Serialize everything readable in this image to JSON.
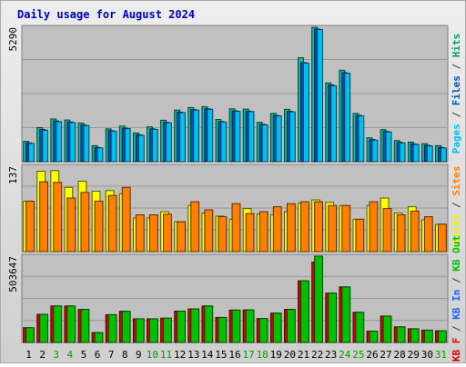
{
  "chart_data": {
    "type": "bar",
    "title": "Daily usage for August 2024",
    "categories": [
      "1",
      "2",
      "3",
      "4",
      "5",
      "6",
      "7",
      "8",
      "9",
      "10",
      "11",
      "12",
      "13",
      "14",
      "15",
      "16",
      "17",
      "18",
      "19",
      "20",
      "21",
      "22",
      "23",
      "24",
      "25",
      "26",
      "27",
      "28",
      "29",
      "30",
      "31"
    ],
    "weekend_days": [
      "3",
      "4",
      "10",
      "11",
      "17",
      "18",
      "24",
      "25",
      "31"
    ],
    "panels": [
      {
        "max_label": "5290",
        "ylim": [
          0,
          5290
        ],
        "axis_label": [
          {
            "text": "Pages",
            "color": "#00c0f0"
          },
          {
            "text": " / ",
            "color": "#404040"
          },
          {
            "text": "Files",
            "color": "#0050c0"
          },
          {
            "text": " / ",
            "color": "#404040"
          },
          {
            "text": "Hits",
            "color": "#00a070"
          }
        ],
        "series": [
          {
            "name": "Hits",
            "color": "#00c0a0",
            "values": [
              800,
              1340,
              1680,
              1640,
              1520,
              630,
              1290,
              1400,
              1130,
              1370,
              1630,
              2030,
              2130,
              2160,
              1660,
              2080,
              2070,
              1550,
              1900,
              2060,
              4090,
              5290,
              3100,
              3600,
              1900,
              940,
              1260,
              830,
              770,
              710,
              630
            ]
          },
          {
            "name": "Files",
            "color": "#0050c0",
            "values": [
              740,
              1270,
              1600,
              1560,
              1440,
              560,
              1220,
              1320,
              1060,
              1290,
              1550,
              1950,
              2050,
              2080,
              1580,
              2000,
              1990,
              1470,
              1820,
              1980,
              3900,
              5220,
              3020,
              3500,
              1820,
              870,
              1190,
              760,
              700,
              640,
              560
            ]
          },
          {
            "name": "Pages",
            "color": "#00c0f0",
            "values": [
              720,
              1240,
              1570,
              1540,
              1420,
              540,
              1200,
              1300,
              1040,
              1270,
              1530,
              1930,
              2030,
              2060,
              1560,
              1980,
              1970,
              1450,
              1800,
              1960,
              3880,
              5200,
              2990,
              3480,
              1800,
              850,
              1170,
              740,
              680,
              620,
              540
            ]
          }
        ]
      },
      {
        "max_label": "137",
        "ylim": [
          0,
          137
        ],
        "axis_label": [
          {
            "text": "Visits",
            "color": "#f0f000"
          },
          {
            "text": " / ",
            "color": "#404040"
          },
          {
            "text": "Sites",
            "color": "#ff8000"
          }
        ],
        "series": [
          {
            "name": "Visits",
            "color": "#ffff00",
            "values": [
              81,
              129,
              130,
              103,
              113,
              97,
              98,
              93,
              54,
              54,
              64,
              48,
              74,
              62,
              57,
              52,
              69,
              60,
              59,
              64,
              78,
              83,
              79,
              74,
              52,
              74,
              86,
              62,
              72,
              51,
              44
            ]
          },
          {
            "name": "Sites",
            "color": "#ff8000",
            "values": [
              81,
              112,
              111,
              86,
              95,
              81,
              90,
              103,
              59,
              59,
              60,
              48,
              80,
              67,
              56,
              77,
              61,
              64,
              72,
              77,
              80,
              80,
              74,
              74,
              52,
              80,
              69,
              59,
              65,
              56,
              44
            ]
          }
        ]
      },
      {
        "max_label": "503647",
        "ylim": [
          0,
          503647
        ],
        "axis_label": [
          {
            "text": "KB F",
            "color": "#e00000"
          },
          {
            "text": " / ",
            "color": "#404040"
          },
          {
            "text": "KB In",
            "color": "#2060ff"
          },
          {
            "text": " / ",
            "color": "#404040"
          },
          {
            "text": "KB Out",
            "color": "#00c000"
          }
        ],
        "series": [
          {
            "name": "KB F",
            "color": "#e00000",
            "values": [
              86000,
              164000,
              213000,
              213000,
              193000,
              58000,
              162000,
              182000,
              138000,
              138000,
              142000,
              183000,
              196000,
              213000,
              146000,
              189000,
              190000,
              140000,
              171000,
              193000,
              360000,
              469000,
              288000,
              324000,
              176000,
              66000,
              154000,
              91000,
              80000,
              72000,
              68000
            ]
          },
          {
            "name": "KB Out",
            "color": "#00c000",
            "values": [
              86000,
              164000,
              213000,
              213000,
              193000,
              58000,
              162000,
              182000,
              138000,
              138000,
              142000,
              183000,
              196000,
              213000,
              146000,
              189000,
              190000,
              140000,
              171000,
              193000,
              360000,
              503647,
              288000,
              324000,
              176000,
              66000,
              154000,
              91000,
              80000,
              72000,
              68000
            ]
          }
        ]
      }
    ]
  }
}
